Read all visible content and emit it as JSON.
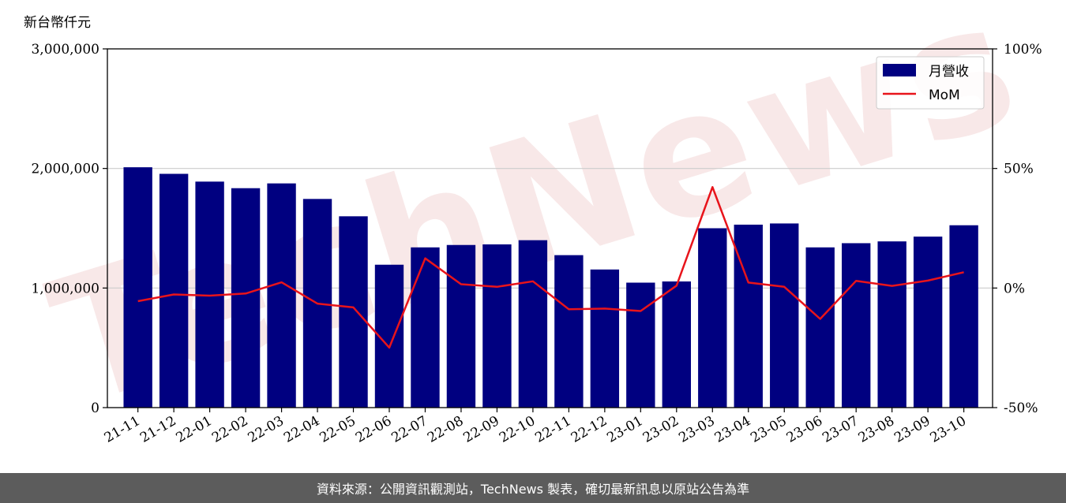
{
  "unit_label": "新台幣仟元",
  "watermark": "TechNews",
  "footer": "資料來源：公開資訊觀測站，TechNews 製表，確切最新訊息以原站公告為準",
  "colors": {
    "bar": "#000080",
    "line": "#e8141b",
    "grid": "#cccccc",
    "footer_bg": "#5c5c5c",
    "watermark": "#f3d8d8"
  },
  "chart_data": {
    "type": "bar",
    "categories": [
      "21-11",
      "21-12",
      "22-01",
      "22-02",
      "22-03",
      "22-04",
      "22-05",
      "22-06",
      "22-07",
      "22-08",
      "22-09",
      "22-10",
      "22-11",
      "22-12",
      "23-01",
      "23-02",
      "23-03",
      "23-04",
      "23-05",
      "23-06",
      "23-07",
      "23-08",
      "23-09",
      "23-10"
    ],
    "series": [
      {
        "name": "月營收",
        "type": "bar",
        "axis": "left",
        "values": [
          2010000,
          1955000,
          1890000,
          1835000,
          1875000,
          1745000,
          1600000,
          1195000,
          1340000,
          1360000,
          1365000,
          1400000,
          1275000,
          1155000,
          1045000,
          1055000,
          1500000,
          1530000,
          1540000,
          1340000,
          1375000,
          1390000,
          1430000,
          1525000
        ]
      },
      {
        "name": "MoM",
        "type": "line",
        "axis": "right",
        "unit": "%",
        "values": [
          -5.5,
          -2.7,
          -3.2,
          -2.3,
          2.4,
          -6.5,
          -8.1,
          -24.9,
          12.4,
          1.6,
          0.5,
          2.8,
          -8.9,
          -8.6,
          -9.6,
          1.0,
          42.2,
          2.3,
          0.5,
          -12.9,
          3.0,
          0.9,
          3.1,
          6.6
        ]
      }
    ],
    "y_left": {
      "range": [
        0,
        3000000
      ],
      "ticks": [
        "0",
        "1,000,000",
        "2,000,000",
        "3,000,000"
      ]
    },
    "y_right": {
      "range": [
        -50,
        100
      ],
      "ticks": [
        "-50%",
        "0%",
        "50%",
        "100%"
      ]
    },
    "grid": "horizontal",
    "legend_position": "top-right"
  }
}
